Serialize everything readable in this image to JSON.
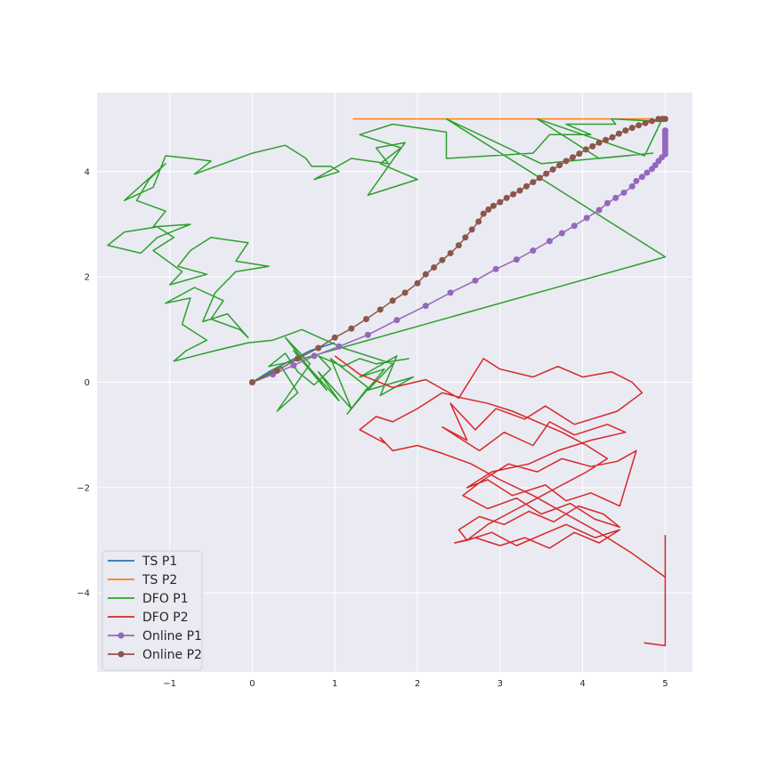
{
  "chart_data": {
    "type": "line",
    "title": "",
    "xlabel": "",
    "ylabel": "",
    "xlim": [
      -1.88,
      5.33
    ],
    "ylim": [
      -5.5,
      5.5
    ],
    "xticks": [
      -1,
      0,
      1,
      2,
      3,
      4,
      5
    ],
    "yticks": [
      -4,
      -2,
      0,
      2,
      4
    ],
    "xtick_labels": [
      "−1",
      "0",
      "1",
      "2",
      "3",
      "4",
      "5"
    ],
    "ytick_labels": [
      "−4",
      "−2",
      "0",
      "2",
      "4"
    ],
    "grid": true,
    "background": "#eaeaf2",
    "legend_position": "lower-left",
    "series": [
      {
        "name": "TS P1",
        "color": "#1f77b4",
        "marker": "none",
        "x": [
          0,
          0.2,
          0.45,
          0.7,
          1.0
        ],
        "y": [
          0,
          0.2,
          0.4,
          0.6,
          0.75
        ]
      },
      {
        "name": "TS P2",
        "color": "#ff7f0e",
        "marker": "none",
        "x": [
          1.22,
          2.0,
          3.0,
          4.0,
          4.82
        ],
        "y": [
          5.0,
          5.0,
          5.0,
          5.0,
          5.0
        ]
      },
      {
        "name": "DFO P1",
        "color": "#2ca02c",
        "marker": "none",
        "x": [
          0,
          0.35,
          0.55,
          0.3,
          0.7,
          0.4,
          0.9,
          0.5,
          1.05,
          0.8,
          1.2,
          0.95,
          1.4,
          1.15,
          1.6,
          1.3,
          1.75,
          1.55,
          1.95,
          1.4,
          1.7,
          1.1,
          0.6,
          0.25,
          -0.05,
          -0.45,
          -0.95,
          -0.8,
          -0.55,
          -0.85,
          -0.75,
          -1.05,
          -0.7,
          -0.35,
          -0.5,
          -0.15,
          -0.05,
          -0.3,
          -0.6,
          -0.45,
          -0.2,
          0.2,
          -0.2,
          -0.05,
          -0.5,
          -0.75,
          -0.9,
          -0.55,
          -1.0,
          -0.85,
          -1.2,
          -0.95,
          -1.15,
          -1.55,
          -1.75,
          -1.35,
          -1.15,
          -0.75,
          -1.2,
          -1.05,
          -1.4,
          -1.25,
          -1.05,
          -1.3,
          -1.55,
          -1.2,
          -1.05,
          -0.75,
          -0.5,
          -0.7,
          0.0,
          0.4,
          0.65,
          0.72,
          0.95,
          1.05,
          0.75,
          1.2,
          1.65,
          1.5,
          1.85,
          1.4,
          2.0,
          1.55,
          1.8,
          1.3,
          1.7,
          2.35,
          2.35,
          3.4,
          3.6,
          4.1,
          3.8,
          4.4,
          4.35,
          4.95,
          4.75,
          3.45,
          4.2,
          4.85,
          3.5,
          2.35,
          5.0,
          0.5,
          0.2,
          0.4,
          0.55,
          0.75,
          0.95,
          0.8,
          1.1,
          1.3,
          1.5,
          1.9
        ],
        "y": [
          0,
          0.3,
          -0.2,
          -0.55,
          0.35,
          0.85,
          -0.15,
          0.6,
          -0.35,
          0.2,
          -0.5,
          0.45,
          -0.1,
          -0.6,
          0.25,
          0.1,
          0.5,
          -0.25,
          0.1,
          -0.15,
          0.35,
          0.65,
          1.0,
          0.8,
          0.75,
          0.6,
          0.4,
          0.6,
          0.8,
          1.1,
          1.6,
          1.5,
          1.8,
          1.55,
          1.2,
          1.0,
          0.85,
          1.3,
          1.15,
          1.7,
          2.1,
          2.2,
          2.3,
          2.65,
          2.75,
          2.5,
          2.2,
          2.05,
          1.85,
          2.1,
          2.5,
          2.75,
          2.95,
          2.85,
          2.6,
          2.45,
          2.75,
          3.0,
          2.95,
          3.25,
          3.45,
          3.85,
          4.15,
          3.8,
          3.45,
          3.7,
          4.3,
          4.25,
          4.2,
          3.95,
          4.35,
          4.5,
          4.25,
          4.1,
          4.1,
          4.0,
          3.85,
          4.25,
          4.15,
          4.45,
          4.55,
          3.55,
          3.85,
          4.15,
          4.45,
          4.7,
          4.9,
          4.75,
          4.25,
          4.35,
          4.7,
          4.7,
          4.9,
          4.9,
          5.0,
          4.95,
          4.3,
          5.0,
          4.25,
          4.35,
          4.15,
          5.0,
          2.38,
          0.4,
          0.3,
          0.55,
          0.2,
          -0.05,
          0.25,
          0.5,
          0.3,
          0.45,
          0.35,
          0.45
        ]
      },
      {
        "name": "DFO P2",
        "color": "#d62728",
        "marker": "none",
        "x": [
          1.0,
          1.3,
          1.7,
          2.1,
          2.5,
          2.8,
          3.0,
          3.4,
          3.7,
          4.0,
          4.35,
          4.6,
          4.72,
          4.42,
          3.9,
          3.55,
          3.3,
          2.95,
          2.7,
          2.4,
          2.6,
          2.3,
          2.75,
          3.05,
          3.4,
          3.6,
          3.9,
          4.3,
          4.52,
          4.1,
          3.7,
          3.35,
          2.9,
          2.6,
          2.85,
          3.15,
          3.55,
          3.8,
          4.1,
          4.45,
          4.65,
          4.42,
          4.1,
          3.75,
          3.45,
          3.1,
          2.8,
          2.55,
          2.85,
          3.2,
          3.5,
          3.85,
          4.15,
          4.45,
          4.25,
          3.95,
          3.65,
          3.35,
          3.05,
          2.75,
          2.5,
          2.6,
          2.9,
          3.2,
          3.5,
          3.8,
          4.15,
          4.45,
          4.2,
          3.9,
          3.6,
          3.3,
          3.0,
          2.7,
          2.45,
          2.6,
          2.85,
          3.15,
          3.45,
          3.75,
          4.05,
          4.3,
          4.05,
          3.75,
          3.45,
          3.15,
          2.85,
          2.55,
          2.3,
          2.0,
          1.7,
          1.5,
          1.3,
          1.6,
          1.55,
          1.7,
          2.0,
          2.3,
          2.65,
          3.0,
          3.4,
          3.8,
          4.2,
          4.6,
          5.0,
          5.0,
          4.75,
          5.0,
          5.0
        ],
        "y": [
          0.5,
          0.15,
          -0.1,
          0.05,
          -0.3,
          0.45,
          0.25,
          0.1,
          0.3,
          0.1,
          0.2,
          0.0,
          -0.2,
          -0.55,
          -0.8,
          -0.45,
          -0.7,
          -0.5,
          -0.9,
          -0.4,
          -1.1,
          -0.85,
          -1.3,
          -0.95,
          -1.2,
          -0.75,
          -1.0,
          -0.8,
          -0.95,
          -1.1,
          -1.3,
          -1.55,
          -1.7,
          -2.0,
          -1.85,
          -2.15,
          -1.95,
          -2.25,
          -2.1,
          -2.35,
          -1.3,
          -1.5,
          -1.6,
          -1.45,
          -1.7,
          -1.55,
          -1.85,
          -2.15,
          -2.4,
          -2.2,
          -2.5,
          -2.3,
          -2.6,
          -2.75,
          -2.5,
          -2.35,
          -2.65,
          -2.45,
          -2.7,
          -2.55,
          -2.8,
          -3.0,
          -2.85,
          -3.1,
          -2.9,
          -2.7,
          -2.95,
          -2.8,
          -3.05,
          -2.85,
          -3.15,
          -2.95,
          -3.1,
          -2.95,
          -3.05,
          -3.0,
          -2.7,
          -2.45,
          -2.2,
          -1.95,
          -1.7,
          -1.45,
          -1.2,
          -0.95,
          -0.75,
          -0.55,
          -0.4,
          -0.3,
          -0.2,
          -0.5,
          -0.75,
          -0.65,
          -0.9,
          -1.15,
          -1.05,
          -1.3,
          -1.2,
          -1.35,
          -1.55,
          -1.85,
          -2.15,
          -2.5,
          -2.85,
          -3.25,
          -3.7,
          -5.0,
          -4.95,
          -5.0,
          -2.9
        ]
      },
      {
        "name": "Online P1",
        "color": "#9467bd",
        "marker": "circle",
        "x": [
          0,
          0.25,
          0.5,
          0.75,
          1.05,
          1.4,
          1.75,
          2.1,
          2.4,
          2.7,
          2.95,
          3.2,
          3.4,
          3.6,
          3.75,
          3.9,
          4.05,
          4.2,
          4.3,
          4.4,
          4.5,
          4.6,
          4.65,
          4.72,
          4.78,
          4.84,
          4.88,
          4.92,
          4.96,
          5.0,
          5.0,
          5.0,
          5.0,
          5.0,
          5.0,
          5.0,
          5.0,
          5.0,
          5.0
        ],
        "y": [
          0,
          0.15,
          0.32,
          0.5,
          0.68,
          0.9,
          1.18,
          1.45,
          1.7,
          1.93,
          2.15,
          2.33,
          2.5,
          2.68,
          2.83,
          2.97,
          3.12,
          3.27,
          3.4,
          3.5,
          3.6,
          3.72,
          3.82,
          3.9,
          3.98,
          4.05,
          4.12,
          4.2,
          4.27,
          4.33,
          4.38,
          4.43,
          4.48,
          4.53,
          4.58,
          4.63,
          4.68,
          4.73,
          4.78
        ]
      },
      {
        "name": "Online P2",
        "color": "#8c564b",
        "marker": "circle",
        "x": [
          0,
          0.3,
          0.55,
          0.8,
          1.0,
          1.2,
          1.38,
          1.55,
          1.7,
          1.85,
          2.0,
          2.1,
          2.2,
          2.3,
          2.4,
          2.5,
          2.58,
          2.66,
          2.74,
          2.8,
          2.86,
          2.92,
          3.0,
          3.08,
          3.16,
          3.24,
          3.32,
          3.4,
          3.48,
          3.56,
          3.64,
          3.72,
          3.8,
          3.88,
          3.96,
          4.04,
          4.12,
          4.2,
          4.28,
          4.36,
          4.44,
          4.52,
          4.6,
          4.68,
          4.76,
          4.84,
          4.92,
          4.97,
          5.0
        ],
        "y": [
          0,
          0.22,
          0.45,
          0.65,
          0.85,
          1.02,
          1.2,
          1.38,
          1.55,
          1.7,
          1.88,
          2.05,
          2.18,
          2.32,
          2.45,
          2.6,
          2.75,
          2.9,
          3.05,
          3.2,
          3.28,
          3.35,
          3.42,
          3.5,
          3.57,
          3.64,
          3.72,
          3.8,
          3.88,
          3.96,
          4.04,
          4.12,
          4.2,
          4.27,
          4.34,
          4.42,
          4.48,
          4.55,
          4.6,
          4.65,
          4.72,
          4.78,
          4.83,
          4.88,
          4.92,
          4.96,
          5.0,
          5.0,
          5.0
        ]
      }
    ]
  }
}
